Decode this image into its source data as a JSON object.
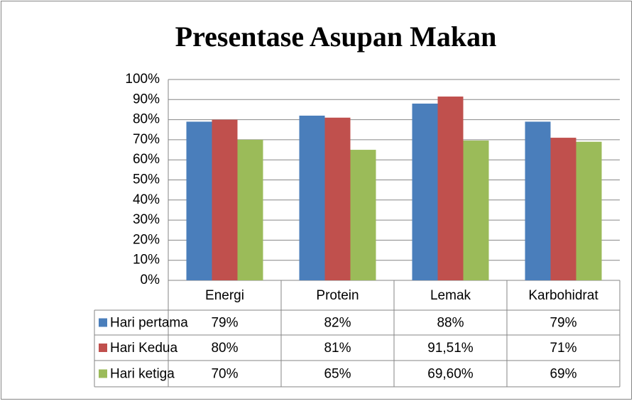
{
  "chart_data": {
    "type": "bar",
    "title": "Presentase Asupan Makan",
    "categories": [
      "Energi",
      "Protein",
      "Lemak",
      "Karbohidrat"
    ],
    "series": [
      {
        "name": "Hari pertama",
        "color": "#4a7ebb",
        "values": [
          79,
          82,
          88,
          79
        ],
        "value_labels": [
          "79%",
          "82%",
          "88%",
          "79%"
        ]
      },
      {
        "name": "Hari Kedua",
        "color": "#c0504d",
        "values": [
          80,
          81,
          91.51,
          71
        ],
        "value_labels": [
          "80%",
          "81%",
          "91,51%",
          "71%"
        ]
      },
      {
        "name": "Hari ketiga",
        "color": "#9bbb59",
        "values": [
          70,
          65,
          69.6,
          69
        ],
        "value_labels": [
          "70%",
          "65%",
          "69,60%",
          "69%"
        ]
      }
    ],
    "ylim": [
      0,
      100
    ],
    "yticks": [
      {
        "value": 0,
        "label": "0%"
      },
      {
        "value": 10,
        "label": "10%"
      },
      {
        "value": 20,
        "label": "20%"
      },
      {
        "value": 30,
        "label": "30%"
      },
      {
        "value": 40,
        "label": "40%"
      },
      {
        "value": 50,
        "label": "50%"
      },
      {
        "value": 60,
        "label": "60%"
      },
      {
        "value": 70,
        "label": "70%"
      },
      {
        "value": 80,
        "label": "80%"
      },
      {
        "value": 90,
        "label": "90%"
      },
      {
        "value": 100,
        "label": "100%"
      }
    ],
    "grid": true
  }
}
